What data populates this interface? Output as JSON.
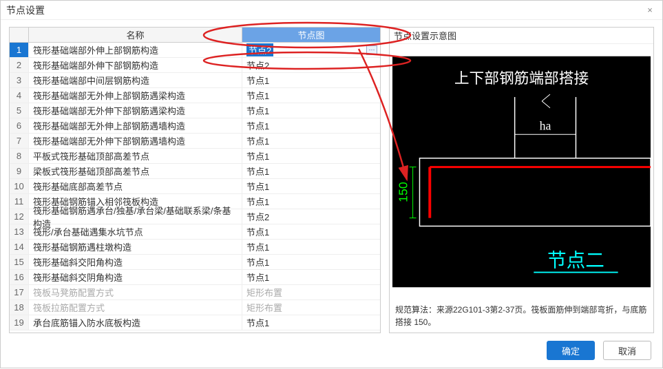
{
  "dialog": {
    "title": "节点设置",
    "close_icon": "×"
  },
  "table": {
    "header": {
      "name": "名称",
      "node": "节点图"
    },
    "rows": [
      {
        "idx": "1",
        "name": "筏形基础端部外伸上部钢筋构造",
        "node": "节点2",
        "selected": true
      },
      {
        "idx": "2",
        "name": "筏形基础端部外伸下部钢筋构造",
        "node": "节点2"
      },
      {
        "idx": "3",
        "name": "筏形基础端部中间层钢筋构造",
        "node": "节点1"
      },
      {
        "idx": "4",
        "name": "筏形基础端部无外伸上部钢筋遇梁构造",
        "node": "节点1"
      },
      {
        "idx": "5",
        "name": "筏形基础端部无外伸下部钢筋遇梁构造",
        "node": "节点1"
      },
      {
        "idx": "6",
        "name": "筏形基础端部无外伸上部钢筋遇墙构造",
        "node": "节点1"
      },
      {
        "idx": "7",
        "name": "筏形基础端部无外伸下部钢筋遇墙构造",
        "node": "节点1"
      },
      {
        "idx": "8",
        "name": "平板式筏形基础顶部高差节点",
        "node": "节点1"
      },
      {
        "idx": "9",
        "name": "梁板式筏形基础顶部高差节点",
        "node": "节点1"
      },
      {
        "idx": "10",
        "name": "筏形基础底部高差节点",
        "node": "节点1"
      },
      {
        "idx": "11",
        "name": "筏形基础钢筋锚入相邻筏板构造",
        "node": "节点1"
      },
      {
        "idx": "12",
        "name": "筏形基础钢筋遇承台/独基/承台梁/基础联系梁/条基构造",
        "node": "节点2"
      },
      {
        "idx": "13",
        "name": "筏形/承台基础遇集水坑节点",
        "node": "节点1"
      },
      {
        "idx": "14",
        "name": "筏形基础钢筋遇柱墩构造",
        "node": "节点1"
      },
      {
        "idx": "15",
        "name": "筏形基础斜交阳角构造",
        "node": "节点1"
      },
      {
        "idx": "16",
        "name": "筏形基础斜交阴角构造",
        "node": "节点1"
      },
      {
        "idx": "17",
        "name": "筏板马凳筋配置方式",
        "node": "矩形布置",
        "disabled": true
      },
      {
        "idx": "18",
        "name": "筏板拉筋配置方式",
        "node": "矩形布置",
        "disabled": true
      },
      {
        "idx": "19",
        "name": "承台底筋锚入防水底板构造",
        "node": "节点1"
      }
    ]
  },
  "preview": {
    "title": "节点设置示意图",
    "diagram": {
      "bg": "#000000",
      "title_text": "上下部钢筋端部搭接",
      "title_color": "#ffffff",
      "title_fontsize": 22,
      "ha_label": "ha",
      "ha_color": "#ffffff",
      "dim_value": "150",
      "dim_color": "#00ff00",
      "rebar_color": "#ff0000",
      "outline_color": "#ffffff",
      "bottom_label": "节点二",
      "bottom_color": "#00ffff",
      "bottom_underline": "#00ffff"
    },
    "spec": "规范算法：来源22G101-3第2-37页。筏板面筋伸到端部弯折，与底筋搭接 150。"
  },
  "footer": {
    "ok": "确定",
    "cancel": "取消"
  },
  "annotation": {
    "ellipse_color": "#d22",
    "arrow_color": "#d22"
  }
}
